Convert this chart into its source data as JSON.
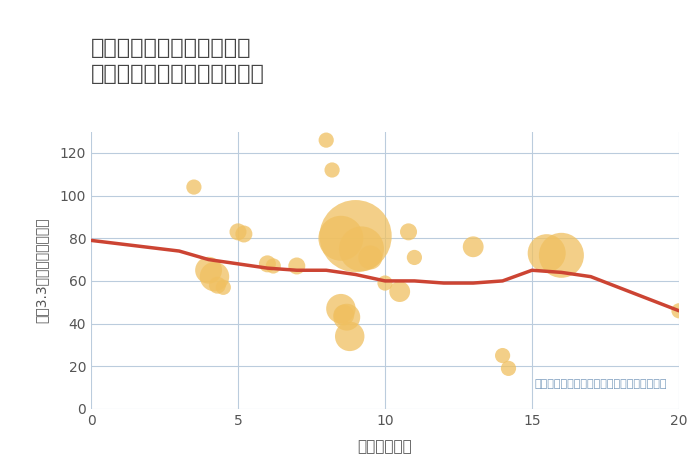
{
  "title": "三重県四日市市南垂坂町の\n駅距離別中古マンション価格",
  "xlabel": "駅距離（分）",
  "ylabel": "坪（3.3㎡）単価（万円）",
  "annotation": "円の大きさは、取引のあった物件面積を示す",
  "xlim": [
    0,
    20
  ],
  "ylim": [
    0,
    130
  ],
  "xticks": [
    0,
    5,
    10,
    15,
    20
  ],
  "yticks": [
    0,
    20,
    40,
    60,
    80,
    100,
    120
  ],
  "bubble_color": "#F0C060",
  "bubble_alpha": 0.75,
  "line_color": "#CC4433",
  "line_width": 2.5,
  "background_color": "#FFFFFF",
  "grid_color": "#BBCCDD",
  "scatter_x": [
    3.5,
    4.0,
    4.2,
    4.3,
    4.5,
    5.0,
    5.2,
    6.0,
    6.2,
    7.0,
    8.0,
    8.2,
    8.5,
    8.5,
    8.6,
    8.7,
    8.8,
    9.0,
    9.2,
    9.5,
    10.0,
    10.5,
    10.8,
    11.0,
    13.0,
    14.0,
    14.2,
    15.5,
    16.0,
    20.0
  ],
  "scatter_y": [
    104,
    65,
    62,
    58,
    57,
    83,
    82,
    68,
    67,
    67,
    126,
    112,
    80,
    47,
    44,
    43,
    34,
    81,
    75,
    71,
    59,
    55,
    83,
    71,
    76,
    25,
    19,
    73,
    72,
    46
  ],
  "scatter_size": [
    8,
    25,
    30,
    10,
    8,
    10,
    10,
    10,
    8,
    10,
    8,
    8,
    70,
    30,
    15,
    25,
    30,
    180,
    70,
    20,
    8,
    15,
    10,
    8,
    15,
    8,
    8,
    50,
    70,
    8
  ],
  "line_x": [
    0,
    3,
    4,
    5,
    6,
    7,
    8,
    9,
    10,
    11,
    12,
    13,
    14,
    15,
    16,
    17,
    20
  ],
  "line_y": [
    79,
    74,
    70,
    68,
    66,
    65,
    65,
    63,
    60,
    60,
    59,
    59,
    60,
    65,
    64,
    62,
    46
  ]
}
